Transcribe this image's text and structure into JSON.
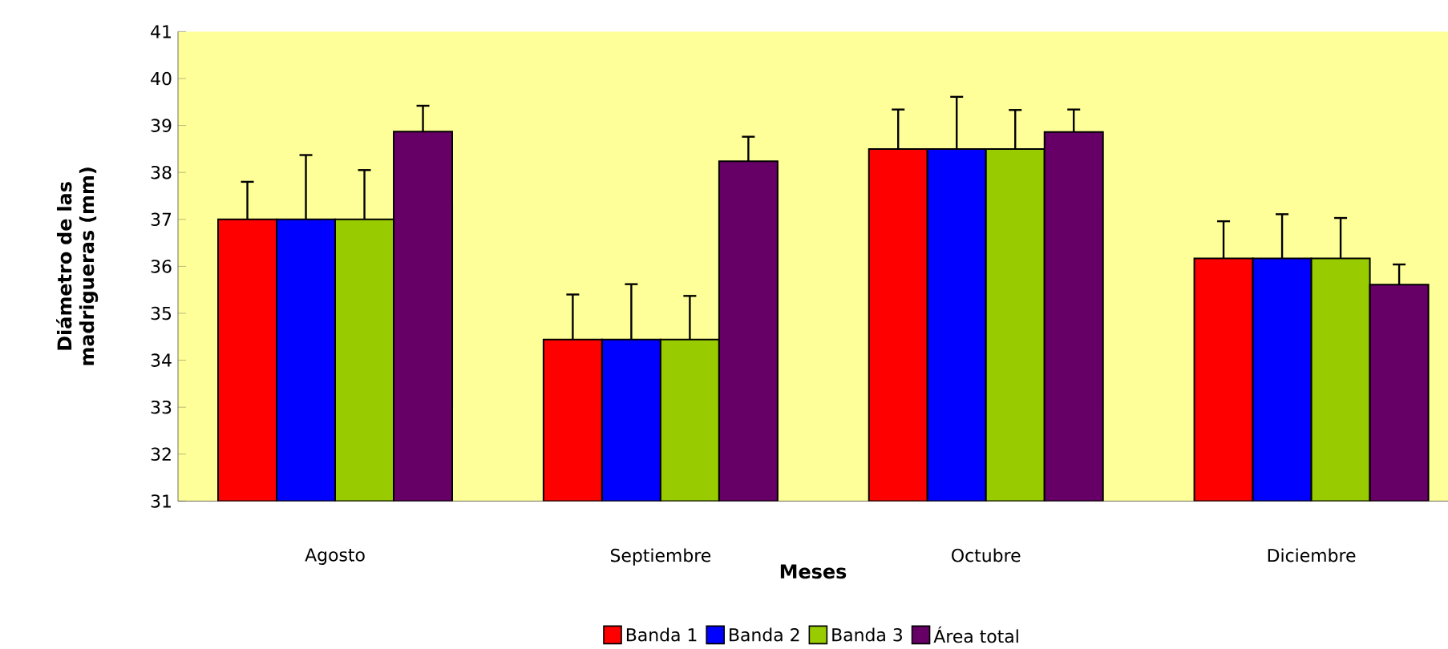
{
  "chart_data": {
    "type": "bar",
    "xlabel": "Meses",
    "ylabel": "Diámetro de las madrigueras (mm)",
    "categories": [
      "Agosto",
      "Septiembre",
      "Octubre",
      "Diciembre"
    ],
    "ylim": [
      31,
      41
    ],
    "yticks": [
      31,
      32,
      33,
      34,
      35,
      36,
      37,
      38,
      39,
      40,
      41
    ],
    "grid": false,
    "legend": "bottom",
    "series": [
      {
        "name": "Banda 1",
        "color": "#ff0000",
        "values": [
          37.0,
          34.44,
          38.5,
          36.17
        ],
        "errors": [
          [
            37.0,
            37.8
          ],
          [
            34.44,
            35.4
          ],
          [
            38.5,
            39.34
          ],
          [
            36.17,
            36.96
          ]
        ]
      },
      {
        "name": "Banda 2",
        "color": "#0000ff",
        "values": [
          37.0,
          34.44,
          38.5,
          36.17
        ],
        "errors": [
          [
            37.0,
            38.37
          ],
          [
            34.44,
            35.62
          ],
          [
            38.5,
            39.61
          ],
          [
            36.17,
            37.11
          ]
        ]
      },
      {
        "name": "Banda 3",
        "color": "#99cc00",
        "values": [
          37.0,
          34.44,
          38.5,
          36.17
        ],
        "errors": [
          [
            37.0,
            38.05
          ],
          [
            34.44,
            35.37
          ],
          [
            38.5,
            39.33
          ],
          [
            36.17,
            37.03
          ]
        ]
      },
      {
        "name": "Área total",
        "color": "#660066",
        "values": [
          38.87,
          38.24,
          38.86,
          35.61
        ],
        "errors": [
          [
            38.87,
            39.42
          ],
          [
            38.24,
            38.76
          ],
          [
            38.86,
            39.34
          ],
          [
            35.61,
            36.04
          ]
        ]
      }
    ]
  }
}
